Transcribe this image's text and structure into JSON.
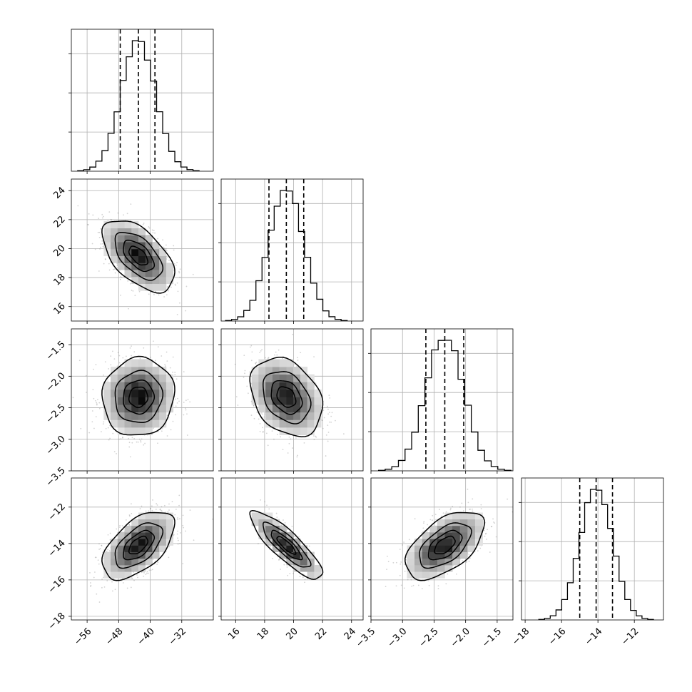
{
  "chart_data": {
    "type": "corner",
    "parameters": [
      {
        "range": [
          -60,
          -24
        ],
        "ticks": [
          -56,
          -48,
          -40,
          -32
        ],
        "tick_labels": [
          "−56",
          "−48",
          "−40",
          "−32"
        ],
        "median": -43.0,
        "q16": -47.6,
        "q84": -38.8,
        "sd": 4.4
      },
      {
        "range": [
          15.0,
          24.8
        ],
        "ticks": [
          16,
          18,
          20,
          22,
          24
        ],
        "tick_labels": [
          "16",
          "18",
          "20",
          "22",
          "24"
        ],
        "median": 19.5,
        "q16": 18.3,
        "q84": 20.7,
        "sd": 1.2
      },
      {
        "range": [
          -3.5,
          -1.25
        ],
        "ticks": [
          -3.5,
          -3.0,
          -2.5,
          -2.0,
          -1.5
        ],
        "tick_labels": [
          "−3.5",
          "−3.0",
          "−2.5",
          "−2.0",
          "−1.5"
        ],
        "median": -2.33,
        "q16": -2.63,
        "q84": -2.03,
        "sd": 0.3
      },
      {
        "range": [
          -18.2,
          -10.4
        ],
        "ticks": [
          -18,
          -16,
          -14,
          -12
        ],
        "tick_labels": [
          "−18",
          "−16",
          "−14",
          "−12"
        ],
        "median": -14.1,
        "q16": -15.0,
        "q84": -13.2,
        "sd": 0.9
      }
    ],
    "correlations": {
      "1-0": -0.55,
      "2-0": 0.05,
      "2-1": -0.3,
      "3-0": 0.55,
      "3-1": -0.85,
      "3-2": 0.55
    },
    "histogram": {
      "bins": 20,
      "quantiles_shown": [
        0.16,
        0.5,
        0.84
      ],
      "quantile_line_style": "dashed"
    },
    "contour_levels_sigma": [
      0.5,
      1.0,
      1.5,
      2.0
    ],
    "scatter_color": "#808080",
    "line_color": "#000000",
    "grid": true
  }
}
